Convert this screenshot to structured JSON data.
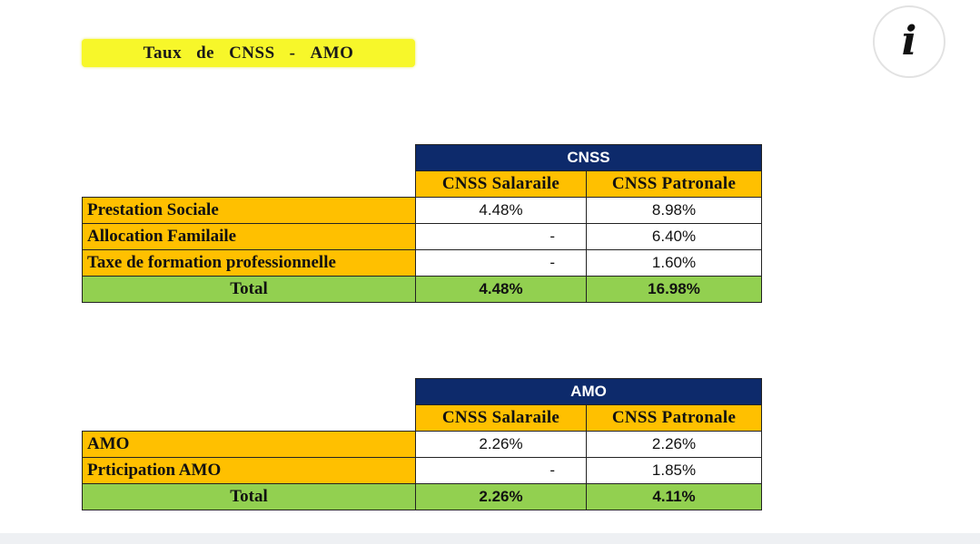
{
  "title": {
    "word1": "Taux",
    "word2": "de",
    "word3": "CNSS",
    "sep": "-",
    "word4": "AMO"
  },
  "info_button": {
    "glyph": "i"
  },
  "cnss_table": {
    "group_header": "CNSS",
    "col_salariale": "CNSS  Salaraile",
    "col_patronale": "CNSS  Patronale",
    "rows": [
      {
        "label": "Prestation Sociale",
        "salariale": "4.48%",
        "patronale": "8.98%"
      },
      {
        "label": "Allocation Familaile",
        "salariale": "-",
        "patronale": "6.40%"
      },
      {
        "label": "Taxe de formation professionnelle",
        "salariale": "-",
        "patronale": "1.60%"
      }
    ],
    "total": {
      "label": "Total",
      "salariale": "4.48%",
      "patronale": "16.98%"
    }
  },
  "amo_table": {
    "group_header": "AMO",
    "col_salariale": "CNSS  Salaraile",
    "col_patronale": "CNSS  Patronale",
    "rows": [
      {
        "label": "AMO",
        "salariale": "2.26%",
        "patronale": "2.26%"
      },
      {
        "label": "Prticipation  AMO",
        "salariale": "-",
        "patronale": "1.85%"
      }
    ],
    "total": {
      "label": "Total",
      "salariale": "2.26%",
      "patronale": "4.11%"
    }
  },
  "colors": {
    "title_bg": "#f7f72a",
    "header_navy": "#0d2a6b",
    "label_orange": "#ffc000",
    "total_green": "#92d050"
  }
}
